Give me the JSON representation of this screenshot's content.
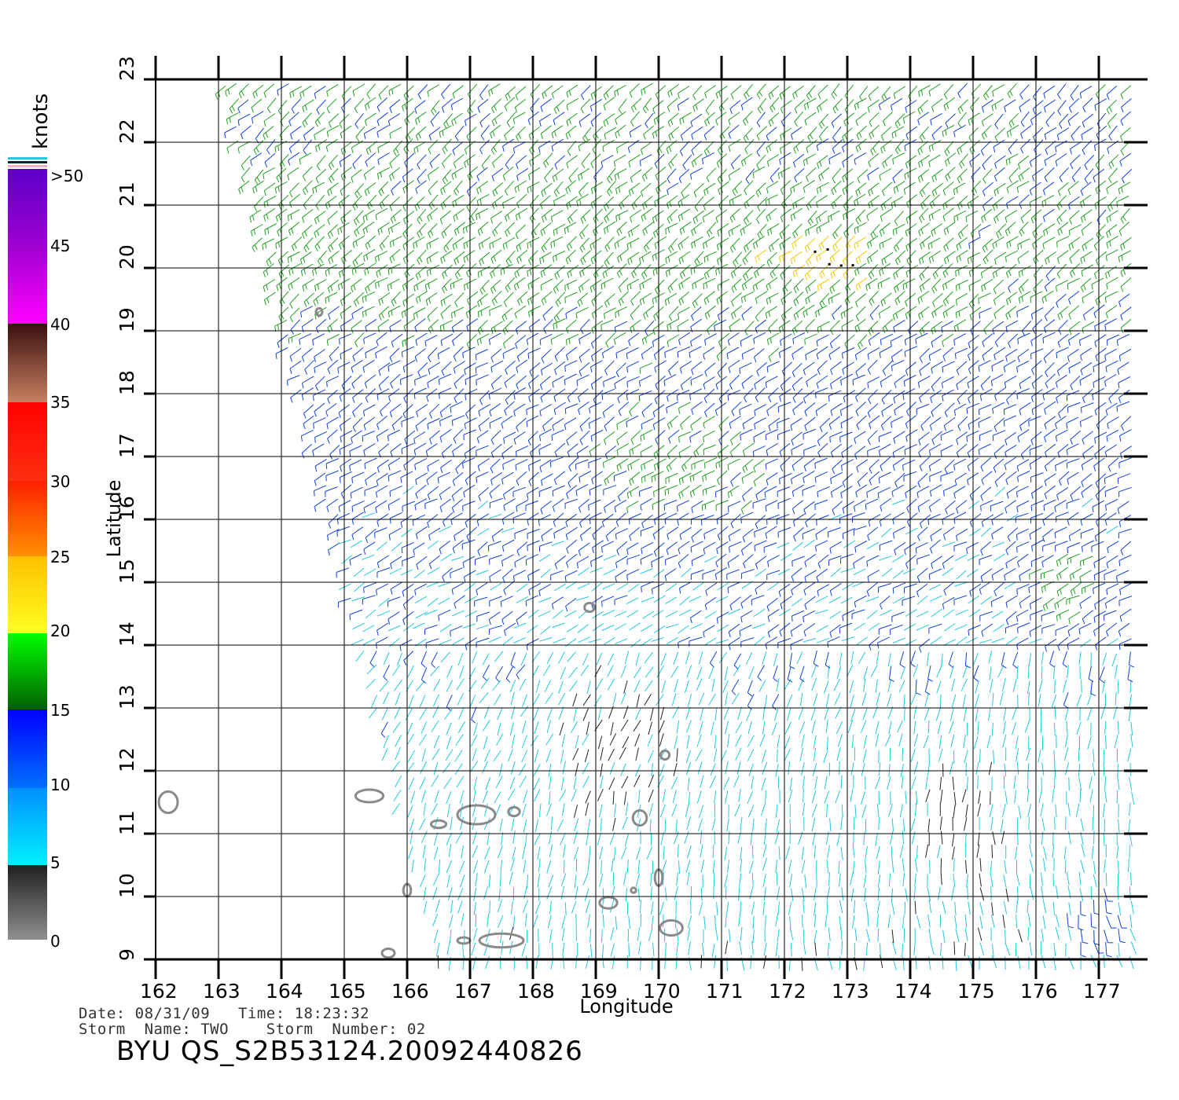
{
  "map": {
    "x_axis_label": "Longitude",
    "y_axis_label": "Latitude",
    "lon_ticks": [
      "162",
      "163",
      "164",
      "165",
      "166",
      "167",
      "168",
      "169",
      "170",
      "171",
      "172",
      "173",
      "174",
      "175",
      "176",
      "177"
    ],
    "lat_ticks": [
      "9",
      "10",
      "11",
      "12",
      "13",
      "14",
      "15",
      "16",
      "17",
      "18",
      "19",
      "20",
      "21",
      "22",
      "23"
    ],
    "lon_range": [
      162,
      177.4
    ],
    "lat_range": [
      9,
      23
    ]
  },
  "legend": {
    "unit": "knots",
    "labels": [
      ">50",
      "45",
      "40",
      "35",
      "30",
      "25",
      "20",
      "15",
      "10",
      "5",
      "0"
    ],
    "bands": [
      {
        "from": 45,
        "to": 50,
        "top": "#5a00c8",
        "bottom": "#8a10c8"
      },
      {
        "from": 40,
        "to": 45,
        "top": "#a000d0",
        "bottom": "#ff00ff"
      },
      {
        "from": 35,
        "to": 40,
        "top": "#3a1010",
        "bottom": "#c88060"
      },
      {
        "from": 30,
        "to": 35,
        "top": "#ff0000",
        "bottom": "#ff3010"
      },
      {
        "from": 25,
        "to": 30,
        "top": "#ff2000",
        "bottom": "#ff9000"
      },
      {
        "from": 20,
        "to": 25,
        "top": "#ffc000",
        "bottom": "#ffff20"
      },
      {
        "from": 15,
        "to": 20,
        "top": "#00ff00",
        "bottom": "#006000"
      },
      {
        "from": 10,
        "to": 15,
        "top": "#0000ff",
        "bottom": "#0070ff"
      },
      {
        "from": 5,
        "to": 10,
        "top": "#0090ff",
        "bottom": "#00f0ff"
      },
      {
        "from": 0,
        "to": 5,
        "top": "#202020",
        "bottom": "#909090"
      }
    ]
  },
  "colors": {
    "calm": "#222222",
    "light": "#20c8e0",
    "moderate": "#1040e0",
    "fresh": "#20a020",
    "strong": "#f0c800",
    "gale": "#e03000",
    "land_outline": "#8a8a8a"
  },
  "islands": [
    {
      "lon": 162.2,
      "lat": 11.5,
      "rx": 0.15,
      "ry": 0.17
    },
    {
      "lon": 165.4,
      "lat": 11.6,
      "rx": 0.22,
      "ry": 0.1
    },
    {
      "lon": 167.1,
      "lat": 11.3,
      "rx": 0.3,
      "ry": 0.15
    },
    {
      "lon": 166.5,
      "lat": 11.15,
      "rx": 0.12,
      "ry": 0.06
    },
    {
      "lon": 167.7,
      "lat": 11.35,
      "rx": 0.09,
      "ry": 0.07
    },
    {
      "lon": 169.7,
      "lat": 11.25,
      "rx": 0.11,
      "ry": 0.12
    },
    {
      "lon": 168.9,
      "lat": 14.6,
      "rx": 0.08,
      "ry": 0.07
    },
    {
      "lon": 166.0,
      "lat": 10.1,
      "rx": 0.06,
      "ry": 0.1
    },
    {
      "lon": 170.0,
      "lat": 10.3,
      "rx": 0.06,
      "ry": 0.13
    },
    {
      "lon": 169.2,
      "lat": 9.9,
      "rx": 0.14,
      "ry": 0.09
    },
    {
      "lon": 167.5,
      "lat": 9.3,
      "rx": 0.35,
      "ry": 0.11
    },
    {
      "lon": 170.2,
      "lat": 9.5,
      "rx": 0.18,
      "ry": 0.12
    },
    {
      "lon": 165.7,
      "lat": 9.1,
      "rx": 0.1,
      "ry": 0.07
    },
    {
      "lon": 166.9,
      "lat": 9.3,
      "rx": 0.1,
      "ry": 0.05
    },
    {
      "lon": 170.1,
      "lat": 12.25,
      "rx": 0.07,
      "ry": 0.07
    },
    {
      "lon": 164.6,
      "lat": 19.3,
      "rx": 0.05,
      "ry": 0.06
    },
    {
      "lon": 169.6,
      "lat": 10.1,
      "rx": 0.04,
      "ry": 0.04
    }
  ],
  "info": {
    "line1": "Date: 08/31/09   Time: 18:23:32",
    "line2": "Storm  Name: TWO    Storm  Number: 02",
    "title": "BYU  QS_S2B53124.20092440826"
  }
}
